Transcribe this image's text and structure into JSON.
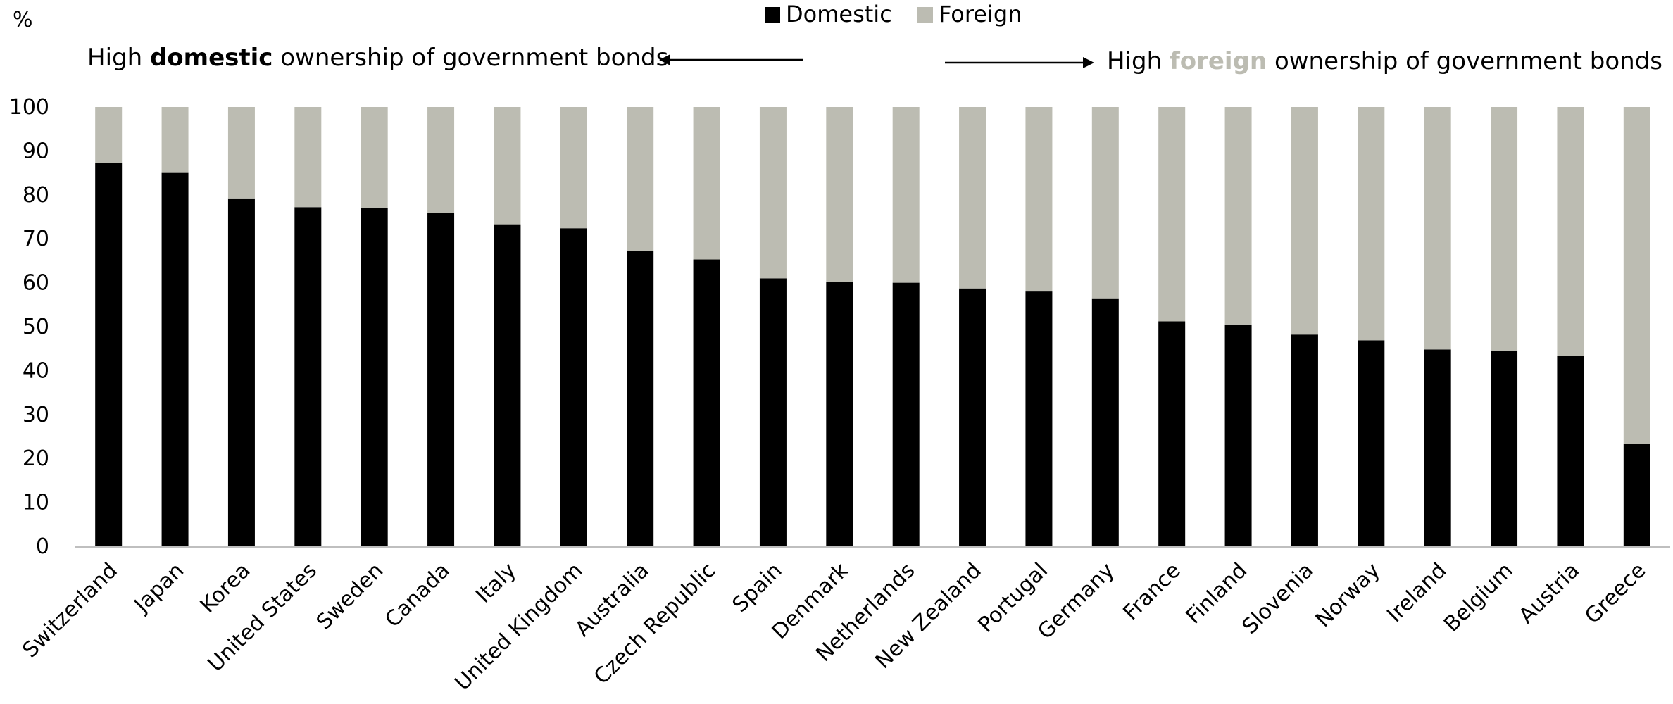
{
  "colors": {
    "domestic": "#000000",
    "foreign": "#bcbcb2",
    "axis": "#bfbfbf",
    "arrow": "#000000"
  },
  "annotations": {
    "left": {
      "prefix": "High ",
      "emphasis": "domestic",
      "suffix": " ownership of government bonds"
    },
    "right": {
      "prefix": "High ",
      "emphasis": "foreign",
      "suffix": " ownership of government bonds"
    }
  },
  "chart_data": {
    "type": "bar",
    "stacked": true,
    "ylabel": "%",
    "ylim": [
      0,
      100
    ],
    "yticks": [
      0,
      10,
      20,
      30,
      40,
      50,
      60,
      70,
      80,
      90,
      100
    ],
    "grid": false,
    "legend": "top-center",
    "categories": [
      "Switzerland",
      "Japan",
      "Korea",
      "United States",
      "Sweden",
      "Canada",
      "Italy",
      "United Kingdom",
      "Australia",
      "Czech Republic",
      "Spain",
      "Denmark",
      "Netherlands",
      "New Zealand",
      "Portugal",
      "Germany",
      "France",
      "Finland",
      "Slovenia",
      "Norway",
      "Ireland",
      "Belgium",
      "Austria",
      "Greece"
    ],
    "series": [
      {
        "name": "Domestic",
        "values": [
          87.3,
          85.0,
          79.2,
          77.2,
          77.0,
          75.9,
          73.3,
          72.4,
          67.3,
          65.3,
          61.0,
          60.1,
          60.0,
          58.7,
          58.0,
          56.3,
          51.2,
          50.5,
          48.2,
          46.9,
          44.8,
          44.5,
          43.3,
          23.3
        ]
      },
      {
        "name": "Foreign",
        "values": [
          12.7,
          15.0,
          20.8,
          22.8,
          23.0,
          24.1,
          26.7,
          27.6,
          32.7,
          34.7,
          39.0,
          39.9,
          40.0,
          41.3,
          42.0,
          43.7,
          48.8,
          49.5,
          51.8,
          53.1,
          55.2,
          55.5,
          56.7,
          76.7
        ]
      }
    ]
  }
}
